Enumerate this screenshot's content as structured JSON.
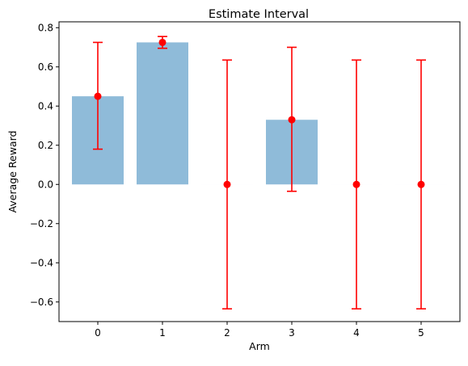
{
  "chart_data": {
    "type": "bar",
    "title": "Estimate Interval",
    "xlabel": "Arm",
    "ylabel": "Average Reward",
    "categories": [
      "0",
      "1",
      "2",
      "3",
      "4",
      "5"
    ],
    "values": [
      0.45,
      0.725,
      0.0,
      0.33,
      0.0,
      0.0
    ],
    "error_low": [
      0.18,
      0.695,
      -0.635,
      -0.035,
      -0.635,
      -0.635
    ],
    "error_high": [
      0.725,
      0.755,
      0.635,
      0.7,
      0.635,
      0.635
    ],
    "xlim": [
      -0.6,
      5.6
    ],
    "ylim": [
      -0.7,
      0.83
    ],
    "yticks": [
      -0.6,
      -0.4,
      -0.2,
      0.0,
      0.2,
      0.4,
      0.6,
      0.8
    ],
    "ytick_labels": [
      "−0.6",
      "−0.4",
      "−0.2",
      "0.0",
      "0.2",
      "0.4",
      "0.6",
      "0.8"
    ],
    "xticks": [
      0,
      1,
      2,
      3,
      4,
      5
    ],
    "grid": false,
    "colors": {
      "bar": "#8fbbd9",
      "error": "#ff0000",
      "axis": "#000000"
    }
  }
}
